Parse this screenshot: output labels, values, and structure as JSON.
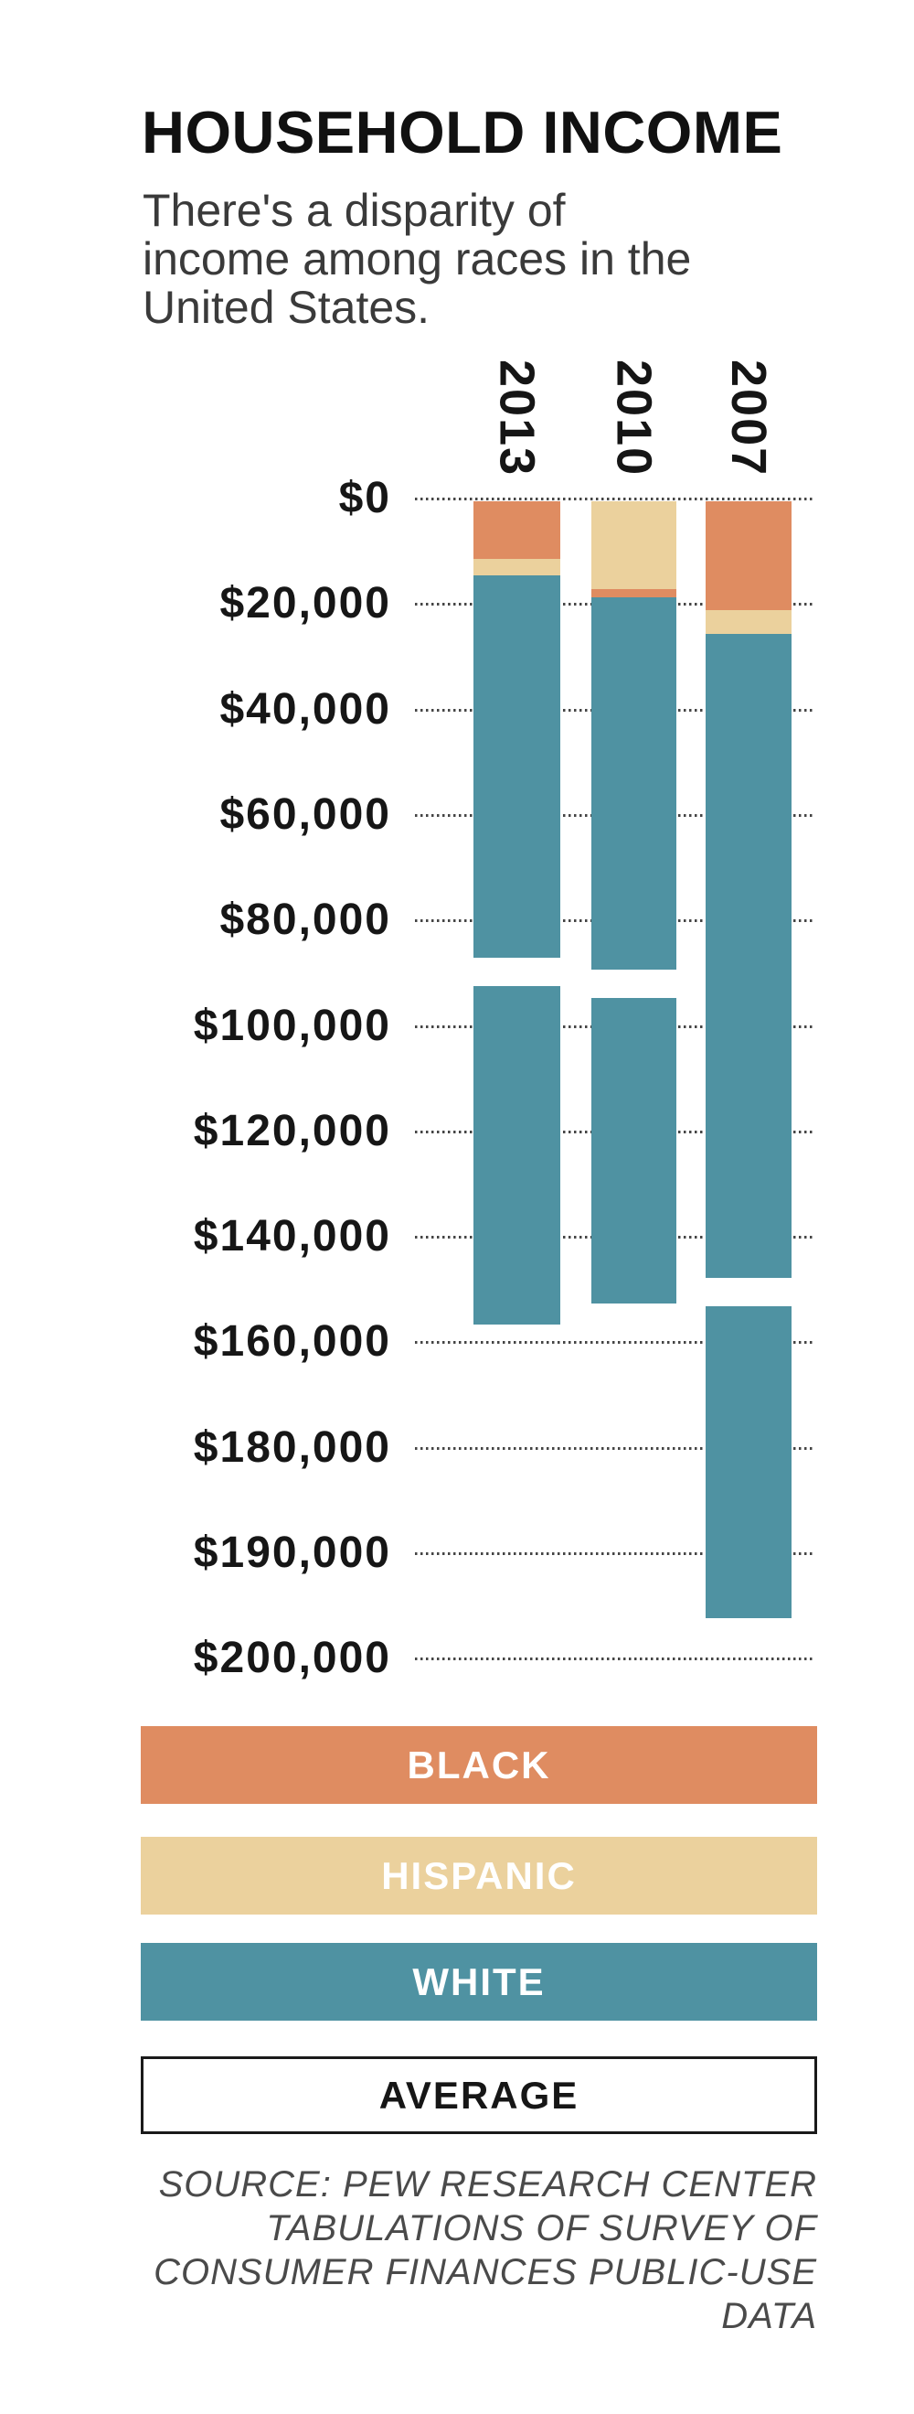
{
  "title": "HOUSEHOLD INCOME",
  "subtitle": "There's a disparity of\nincome among races in the\nUnited States.",
  "source": "SOURCE: PEW RESEARCH CENTER\nTABULATIONS OF SURVEY OF\nCONSUMER FINANCES PUBLIC-USE\nDATA",
  "colors": {
    "black_series": "#DF8C61",
    "hispanic_series": "#EBD19D",
    "white_series": "#4F92A2",
    "average_fill": "#FFFFFF",
    "average_border": "#1a1a1a",
    "grid_dots": "#454545",
    "title_text": "#111111",
    "subtitle_text": "#3a3a3a",
    "source_text": "#4a4a4a",
    "background": "#FFFFFF"
  },
  "chart_data": {
    "type": "bar",
    "title": "HOUSEHOLD INCOME",
    "subtitle": "There's a disparity of income among races in the United States.",
    "unit": "USD",
    "orientation": "vertical, values increase downward from $0 at top",
    "categories": [
      "2013",
      "2010",
      "2007"
    ],
    "series": [
      {
        "name": "BLACK",
        "color": "#DF8C61",
        "values": [
          11500,
          18700,
          21200
        ]
      },
      {
        "name": "HISPANIC",
        "color": "#EBD19D",
        "values": [
          14500,
          17200,
          25700
        ]
      },
      {
        "name": "WHITE",
        "color": "#4F92A2",
        "values": [
          156600,
          152600,
          196200
        ]
      },
      {
        "name": "AVERAGE",
        "color": "#FFFFFF",
        "values": [
          89700,
          92000,
          150400
        ]
      }
    ],
    "stack_order": {
      "2013": [
        "BLACK",
        "HISPANIC",
        "WHITE"
      ],
      "2010": [
        "HISPANIC",
        "BLACK",
        "WHITE"
      ],
      "2007": [
        "BLACK",
        "HISPANIC",
        "WHITE"
      ]
    },
    "axis": {
      "tick_labels": [
        "$0",
        "$20,000",
        "$40,000",
        "$60,000",
        "$80,000",
        "$100,000",
        "$120,000",
        "$140,000",
        "$160,000",
        "$180,000",
        "$190,000",
        "$200,000"
      ],
      "tick_values": [
        0,
        20000,
        40000,
        60000,
        80000,
        100000,
        120000,
        140000,
        160000,
        180000,
        190000,
        200000
      ],
      "grid": "dotted",
      "note_axis_spacing": "all ticks equally spaced as printed, including $180,000 to $190,000 to $200,000"
    },
    "legend_position": "bottom",
    "legend": [
      {
        "label": "BLACK",
        "fill": "#DF8C61",
        "text_color": "#FFFFFF",
        "border": null
      },
      {
        "label": "HISPANIC",
        "fill": "#EBD19D",
        "text_color": "#FFFFFF",
        "border": null
      },
      {
        "label": "WHITE",
        "fill": "#4F92A2",
        "text_color": "#FFFFFF",
        "border": null
      },
      {
        "label": "AVERAGE",
        "fill": "#FFFFFF",
        "text_color": "#161616",
        "border": "#1a1a1a"
      }
    ]
  }
}
